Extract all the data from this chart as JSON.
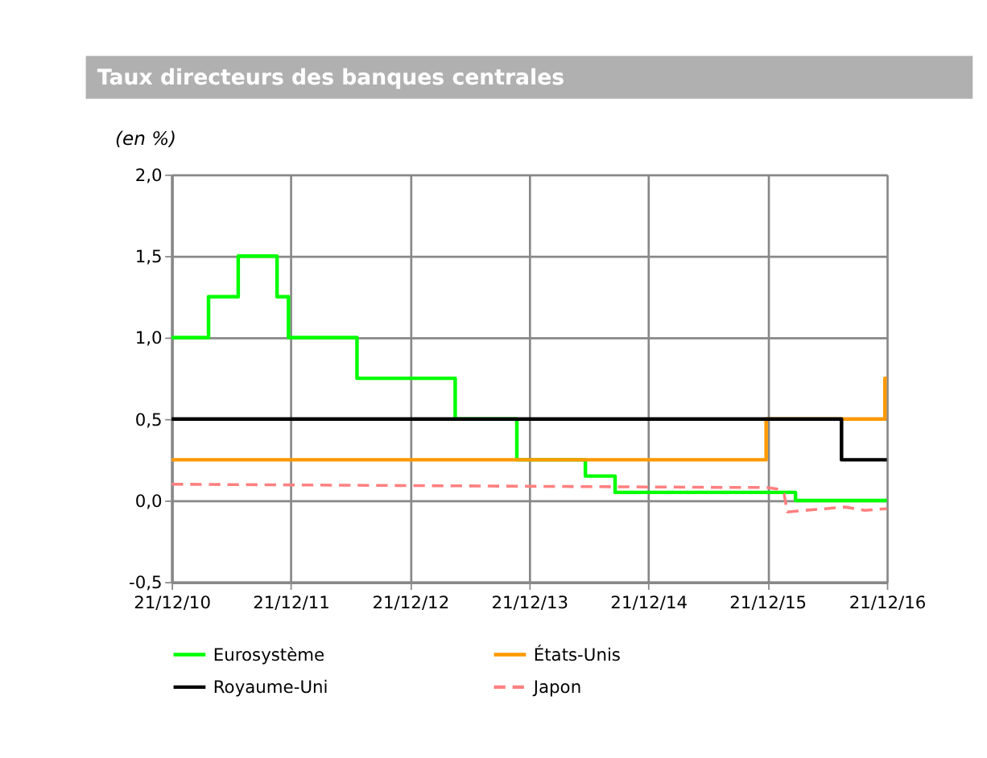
{
  "chart_data": {
    "type": "step",
    "title": "Taux directeurs des banques centrales",
    "ylabel": "(en %)",
    "xlim": [
      "2010-12-21",
      "2016-12-21"
    ],
    "xticks": [
      {
        "value": "2010-12-21",
        "label": "21/12/10"
      },
      {
        "value": "2011-12-21",
        "label": "21/12/11"
      },
      {
        "value": "2012-12-21",
        "label": "21/12/12"
      },
      {
        "value": "2013-12-21",
        "label": "21/12/13"
      },
      {
        "value": "2014-12-21",
        "label": "21/12/14"
      },
      {
        "value": "2015-12-21",
        "label": "21/12/15"
      },
      {
        "value": "2016-12-21",
        "label": "21/12/16"
      }
    ],
    "ylim": [
      -0.5,
      2.0
    ],
    "yticks": [
      {
        "value": -0.5,
        "label": "-0,5"
      },
      {
        "value": 0.0,
        "label": "0,0"
      },
      {
        "value": 0.5,
        "label": "0,5"
      },
      {
        "value": 1.0,
        "label": "1,0"
      },
      {
        "value": 1.5,
        "label": "1,5"
      },
      {
        "value": 2.0,
        "label": "2,0"
      }
    ],
    "grid": true,
    "legend": "bottom",
    "series": [
      {
        "name": "Eurosystème",
        "color": "#00ff00",
        "line_style": "solid",
        "x": [
          "2010-12-21",
          "2011-04-13",
          "2011-07-13",
          "2011-11-09",
          "2011-12-14",
          "2012-07-11",
          "2013-05-08",
          "2013-11-13",
          "2014-06-11",
          "2014-09-10",
          "2016-03-16",
          "2016-12-21"
        ],
        "values": [
          1.0,
          1.25,
          1.5,
          1.25,
          1.0,
          0.75,
          0.5,
          0.25,
          0.15,
          0.05,
          0.0,
          0.0
        ]
      },
      {
        "name": "États-Unis",
        "color": "#ff9900",
        "line_style": "solid",
        "x": [
          "2010-12-21",
          "2015-12-17",
          "2016-12-15",
          "2016-12-21"
        ],
        "values": [
          0.25,
          0.5,
          0.75,
          0.75
        ]
      },
      {
        "name": "Royaume-Uni",
        "color": "#000000",
        "line_style": "solid",
        "x": [
          "2010-12-21",
          "2016-08-04",
          "2016-12-21"
        ],
        "values": [
          0.5,
          0.25,
          0.25
        ]
      },
      {
        "name": "Japon",
        "type": "line",
        "color": "#ff8080",
        "line_style": "dashed",
        "x": [
          "2010-12-21",
          "2015-10-01",
          "2015-12-20",
          "2016-01-20",
          "2016-02-10",
          "2016-02-20",
          "2016-04-15",
          "2016-06-15",
          "2016-08-15",
          "2016-10-15",
          "2016-12-21"
        ],
        "values": [
          0.1,
          0.08,
          0.08,
          0.07,
          0.04,
          -0.07,
          -0.06,
          -0.05,
          -0.04,
          -0.06,
          -0.05
        ]
      }
    ]
  }
}
